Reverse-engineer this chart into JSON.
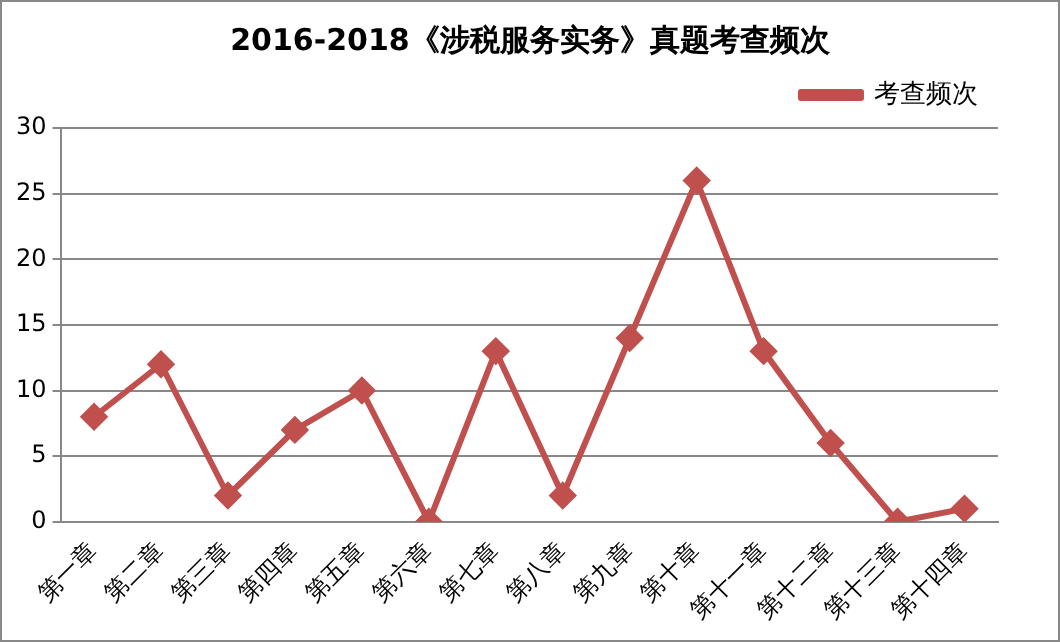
{
  "chart_data": {
    "type": "line",
    "title": "2016-2018《涉税服务实务》真题考查频次",
    "categories": [
      "第一章",
      "第二章",
      "第三章",
      "第四章",
      "第五章",
      "第六章",
      "第七章",
      "第八章",
      "第九章",
      "第十章",
      "第十一章",
      "第十二章",
      "第十三章",
      "第十四章"
    ],
    "series": [
      {
        "name": "考查频次",
        "color": "#c0504d",
        "values": [
          8,
          12,
          2,
          7,
          10,
          0,
          13,
          2,
          14,
          26,
          13,
          6,
          0,
          1
        ]
      }
    ],
    "ylim": [
      0,
      30
    ],
    "yticks": [
      0,
      5,
      10,
      15,
      20,
      25,
      30
    ],
    "grid": "y",
    "legend": "top right",
    "marker": "diamond",
    "line_style": "solid"
  }
}
